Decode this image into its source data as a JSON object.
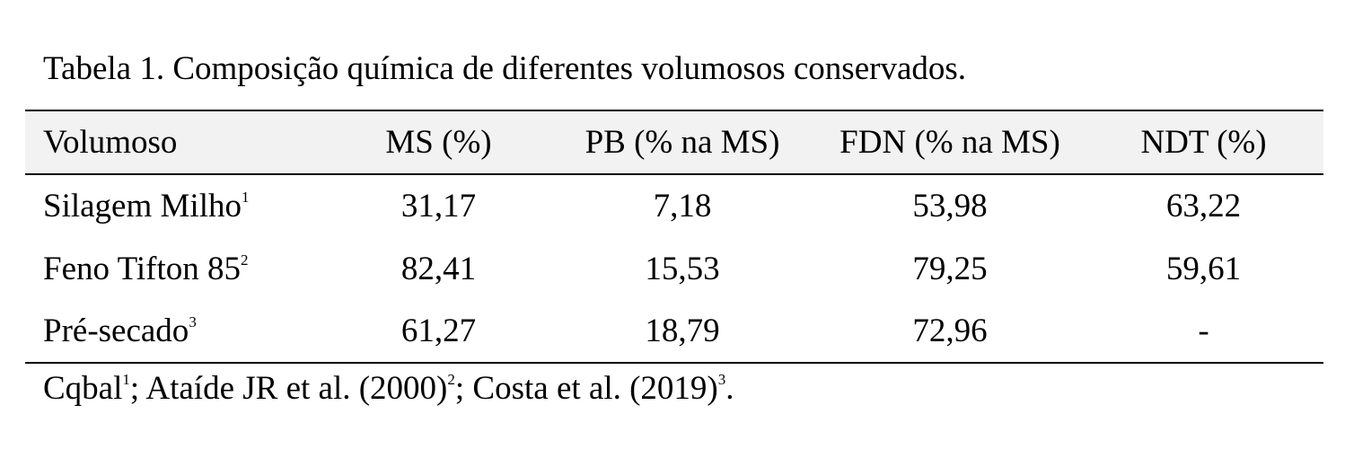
{
  "caption": "Tabela 1. Composição química de diferentes volumosos conservados.",
  "table": {
    "headers": [
      "Volumoso",
      "MS (%)",
      "PB (% na MS)",
      "FDN (% na MS)",
      "NDT (%)"
    ],
    "rows": [
      {
        "name": "Silagem Milho",
        "ref": "1",
        "ms": "31,17",
        "pb": "7,18",
        "fdn": "53,98",
        "ndt": "63,22"
      },
      {
        "name": "Feno Tifton 85",
        "ref": "2",
        "ms": "82,41",
        "pb": "15,53",
        "fdn": "79,25",
        "ndt": "59,61"
      },
      {
        "name": "Pré-secado",
        "ref": "3",
        "ms": "61,27",
        "pb": "18,79",
        "fdn": "72,96",
        "ndt": "-"
      }
    ]
  },
  "footnote": {
    "parts": [
      {
        "text": "Cqbal",
        "sup": "1"
      },
      {
        "text": "; Ataíde JR et al. (2000)",
        "sup": "2"
      },
      {
        "text": "; Costa et al. (2019)",
        "sup": "3"
      },
      {
        "text": "."
      }
    ]
  }
}
